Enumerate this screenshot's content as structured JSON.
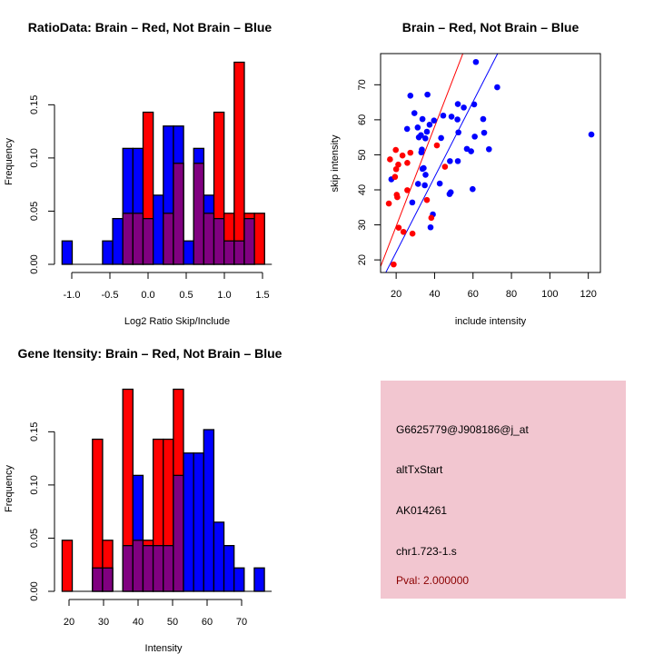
{
  "colors": {
    "blue": "#0000ff",
    "red": "#ff0000",
    "overlap": "#800080",
    "panel_bg": "#f2c6d0",
    "pval": "#8b0000"
  },
  "chart_data": [
    {
      "type": "bar",
      "subtype": "overlaid-histogram",
      "title": "RatioData: Brain – Red, Not Brain – Blue",
      "xlabel": "Log2 Ratio Skip/Include",
      "ylabel": "Frequency",
      "bin_start": -1.127,
      "bin_width": 0.1327,
      "xticks": [
        "-1.0",
        "-0.5",
        "0.0",
        "0.5",
        "1.0",
        "1.5"
      ],
      "xtick_values": [
        -1.0,
        -0.5,
        0.0,
        0.5,
        1.0,
        1.5
      ],
      "yticks": [
        "0.00",
        "0.05",
        "0.10",
        "0.15"
      ],
      "ytick_values": [
        0,
        0.05,
        0.1,
        0.15
      ],
      "series": [
        {
          "name": "Not Brain",
          "color": "blue",
          "values": [
            0.022,
            0,
            0,
            0,
            0.022,
            0.043,
            0.109,
            0.109,
            0.043,
            0.065,
            0.13,
            0.13,
            0.022,
            0.109,
            0.065,
            0.043,
            0.022,
            0.022,
            0.043,
            0
          ]
        },
        {
          "name": "Brain",
          "color": "red",
          "values": [
            0,
            0,
            0,
            0,
            0,
            0,
            0.048,
            0.048,
            0.143,
            0,
            0.048,
            0.095,
            0,
            0.095,
            0.048,
            0.143,
            0.048,
            0.19,
            0.048,
            0.048
          ]
        }
      ]
    },
    {
      "type": "scatter",
      "title": "Brain – Red, Not Brain – Blue",
      "xlabel": "include intensity",
      "ylabel": "skip intensity",
      "xlim": [
        11.9,
        126.3
      ],
      "ylim": [
        16.4,
        78.9
      ],
      "xticks": [
        "20",
        "40",
        "60",
        "80",
        "100",
        "120"
      ],
      "xtick_values": [
        20,
        40,
        60,
        80,
        100,
        120
      ],
      "yticks": [
        "20",
        "30",
        "40",
        "50",
        "60",
        "70"
      ],
      "ytick_values": [
        20,
        30,
        40,
        50,
        60,
        70
      ],
      "series": [
        {
          "name": "Not Brain",
          "color": "blue",
          "points": [
            [
              61.5,
              76.5
            ],
            [
              72.6,
              69.3
            ],
            [
              27.4,
              66.9
            ],
            [
              36.3,
              67.2
            ],
            [
              29.5,
              61.9
            ],
            [
              33.7,
              60.2
            ],
            [
              39.7,
              59.8
            ],
            [
              44.5,
              61.2
            ],
            [
              52.1,
              64.5
            ],
            [
              55.2,
              63.5
            ],
            [
              60.6,
              64.4
            ],
            [
              48.8,
              60.9
            ],
            [
              51.9,
              60.1
            ],
            [
              65.3,
              60.2
            ],
            [
              31.2,
              57.8
            ],
            [
              25.7,
              57.4
            ],
            [
              37.4,
              58.6
            ],
            [
              36.0,
              56.6
            ],
            [
              31.8,
              55.0
            ],
            [
              32.9,
              55.6
            ],
            [
              35.2,
              54.7
            ],
            [
              43.4,
              54.8
            ],
            [
              52.4,
              56.4
            ],
            [
              60.9,
              55.2
            ],
            [
              65.8,
              56.3
            ],
            [
              121.6,
              55.8
            ],
            [
              33.4,
              51.5
            ],
            [
              33.1,
              50.7
            ],
            [
              56.8,
              51.7
            ],
            [
              59.0,
              51.0
            ],
            [
              68.3,
              51.6
            ],
            [
              48.0,
              48.2
            ],
            [
              52.1,
              48.2
            ],
            [
              33.7,
              46.0
            ],
            [
              34.3,
              46.2
            ],
            [
              35.3,
              44.3
            ],
            [
              17.5,
              43.0
            ],
            [
              31.4,
              41.7
            ],
            [
              34.9,
              41.3
            ],
            [
              42.7,
              41.8
            ],
            [
              48.4,
              39.3
            ],
            [
              47.8,
              38.8
            ],
            [
              59.8,
              40.2
            ],
            [
              28.4,
              36.4
            ],
            [
              39.1,
              33.0
            ],
            [
              37.9,
              29.3
            ]
          ],
          "fit_line": {
            "intercept": 0.7,
            "slope": 1.074
          }
        },
        {
          "name": "Brain",
          "color": "red",
          "points": [
            [
              16.8,
              48.7
            ],
            [
              19.8,
              51.4
            ],
            [
              23.3,
              49.8
            ],
            [
              27.4,
              50.6
            ],
            [
              21.1,
              47.2
            ],
            [
              20.0,
              45.9
            ],
            [
              25.8,
              47.7
            ],
            [
              19.4,
              43.7
            ],
            [
              41.2,
              52.7
            ],
            [
              45.4,
              46.6
            ],
            [
              25.8,
              39.9
            ],
            [
              20.3,
              38.6
            ],
            [
              20.6,
              37.9
            ],
            [
              16.2,
              36.1
            ],
            [
              36.0,
              37.1
            ],
            [
              38.3,
              32.0
            ],
            [
              21.3,
              29.2
            ],
            [
              23.8,
              28.0
            ],
            [
              28.5,
              27.5
            ],
            [
              18.7,
              18.7
            ]
          ],
          "fit_line": {
            "intercept": 1.2,
            "slope": 1.42
          }
        }
      ]
    },
    {
      "type": "bar",
      "subtype": "overlaid-histogram",
      "title": "Gene Itensity: Brain – Red, Not Brain – Blue",
      "xlabel": "Intensity",
      "ylabel": "Frequency",
      "bin_start": 18,
      "bin_width": 2.93,
      "xticks": [
        "20",
        "30",
        "40",
        "50",
        "60",
        "70"
      ],
      "xtick_values": [
        20,
        30,
        40,
        50,
        60,
        70
      ],
      "yticks": [
        "0.00",
        "0.05",
        "0.10",
        "0.15"
      ],
      "ytick_values": [
        0,
        0.05,
        0.1,
        0.15
      ],
      "series": [
        {
          "name": "Not Brain",
          "color": "blue",
          "values": [
            0,
            0,
            0,
            0.022,
            0.022,
            0,
            0.043,
            0.109,
            0.043,
            0.043,
            0.043,
            0.109,
            0.13,
            0.13,
            0.152,
            0.065,
            0.043,
            0.022,
            0,
            0.022
          ]
        },
        {
          "name": "Brain",
          "color": "red",
          "values": [
            0.048,
            0,
            0,
            0.143,
            0.048,
            0,
            0.19,
            0.048,
            0.048,
            0.143,
            0.143,
            0.19,
            0,
            0,
            0,
            0,
            0,
            0,
            0,
            0
          ]
        }
      ]
    }
  ],
  "info_panel": {
    "probe_id": "G6625779@J908186@j_at",
    "event_type": "altTxStart",
    "accession": "AK014261",
    "location": "chr1.723-1.s",
    "pval": "Pval: 2.000000"
  }
}
